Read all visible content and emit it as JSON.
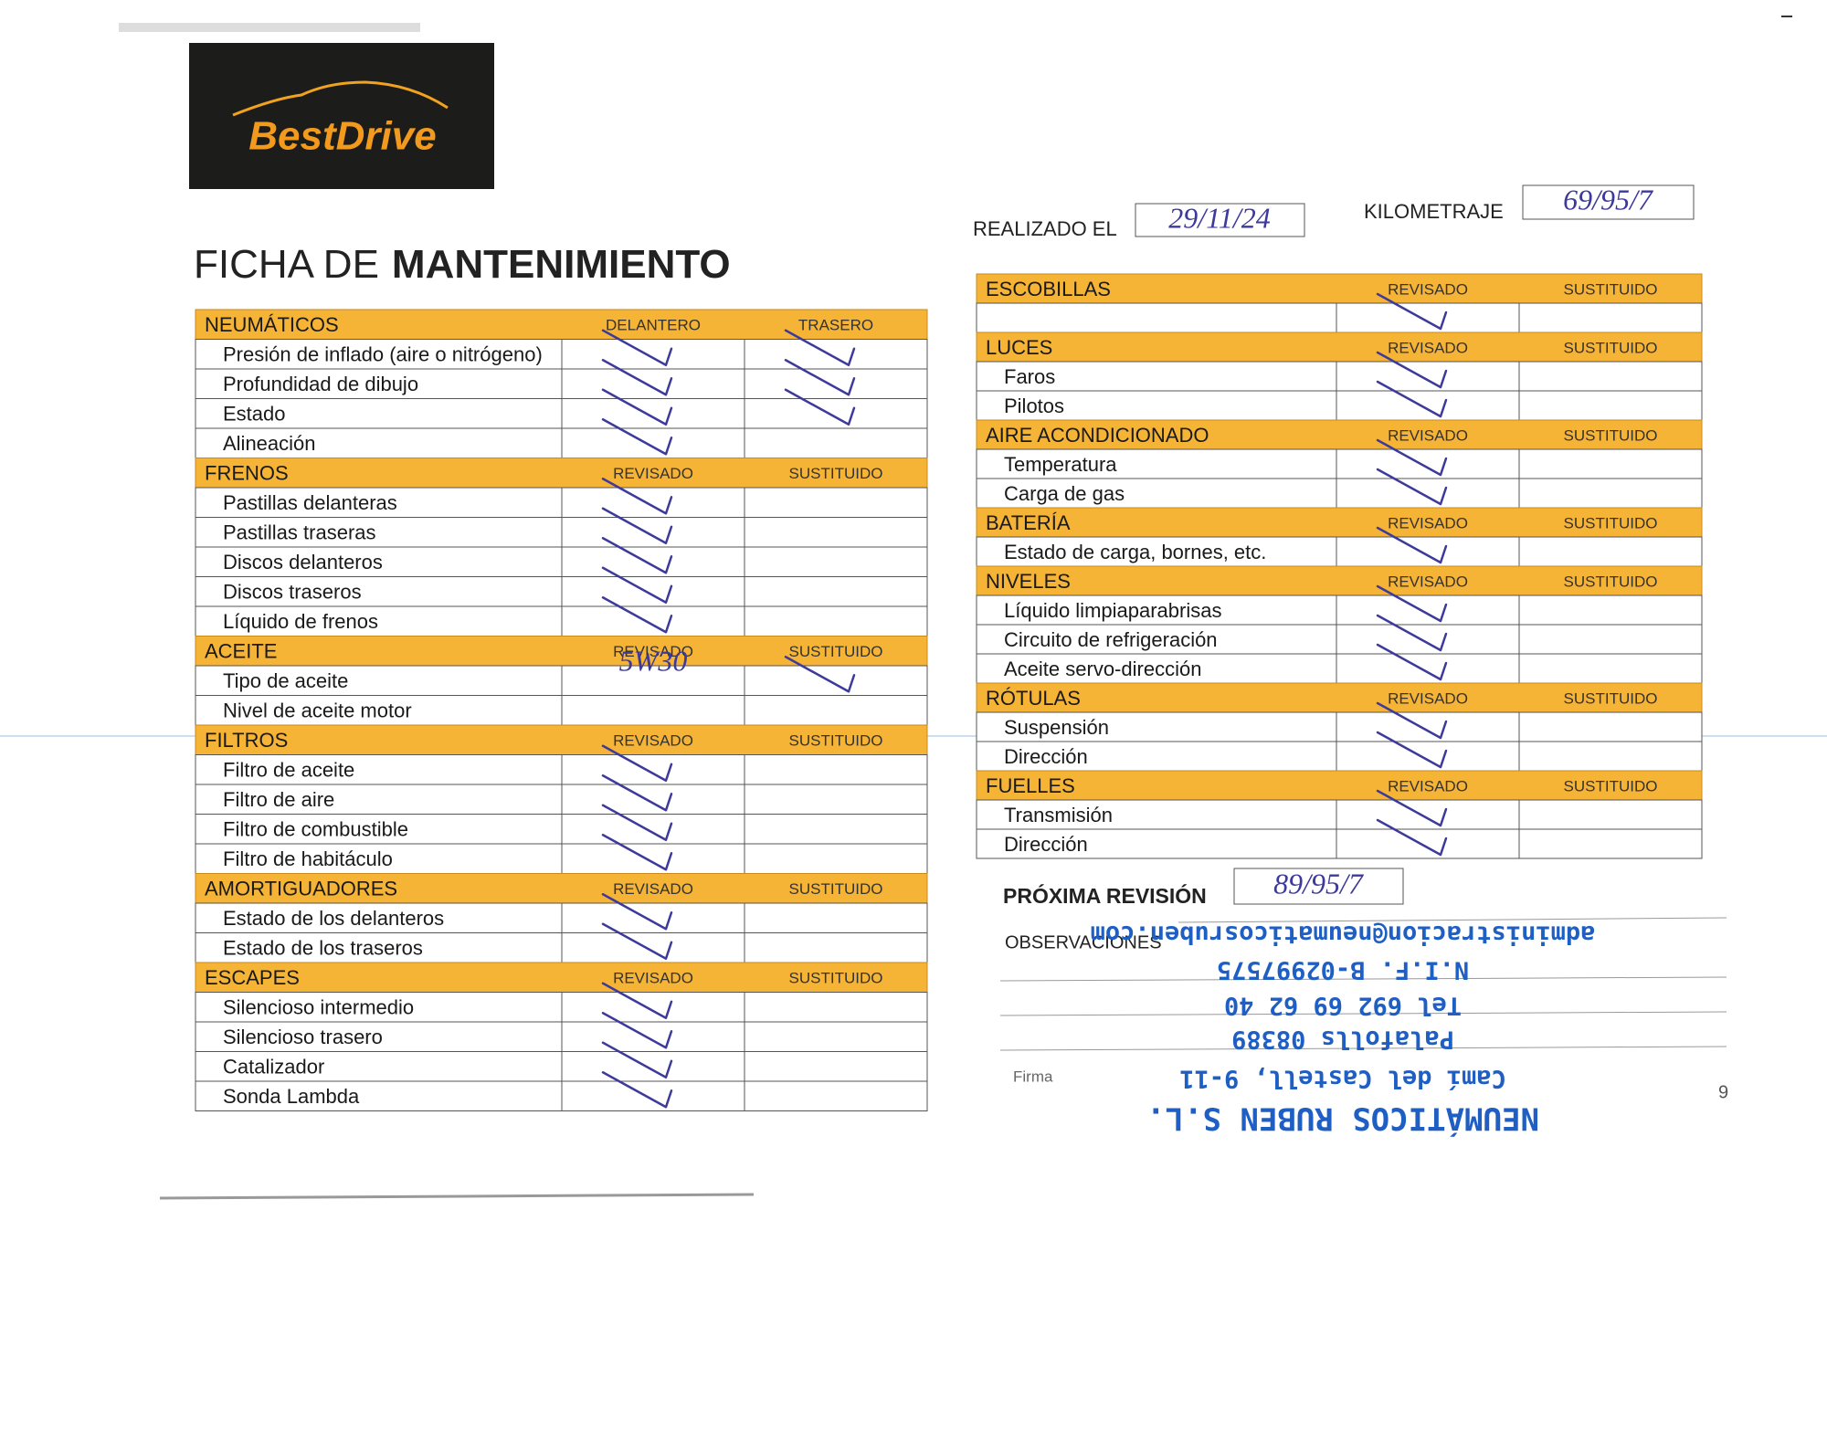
{
  "logo": "BestDrive",
  "title": {
    "light": "FICHA DE",
    "bold": "MANTENIMIENTO"
  },
  "realizado": {
    "label": "REALIZADO EL",
    "value": "29/11/24"
  },
  "kilometraje": {
    "label": "KILOMETRAJE",
    "value": "69/95/7"
  },
  "left_table": [
    {
      "name": "NEUMÁTICOS",
      "columns": [
        "DELANTERO",
        "TRASERO"
      ],
      "rows": [
        {
          "label": "Presión de inflado (aire o nitrógeno)",
          "checked": [
            0,
            1
          ]
        },
        {
          "label": "Profundidad de dibujo",
          "checked": [
            0,
            1
          ]
        },
        {
          "label": "Estado",
          "checked": [
            0,
            1
          ]
        },
        {
          "label": "Alineación",
          "checked": [
            0
          ]
        }
      ]
    },
    {
      "name": "FRENOS",
      "columns": [
        "REVISADO",
        "SUSTITUIDO"
      ],
      "rows": [
        {
          "label": "Pastillas delanteras",
          "checked": [
            0
          ]
        },
        {
          "label": "Pastillas traseras",
          "checked": [
            0
          ]
        },
        {
          "label": "Discos delanteros",
          "checked": [
            0
          ]
        },
        {
          "label": "Discos traseros",
          "checked": [
            0
          ]
        },
        {
          "label": "Líquido de frenos",
          "checked": [
            0
          ]
        }
      ]
    },
    {
      "name": "ACEITE",
      "columns": [
        "REVISADO",
        "SUSTITUIDO"
      ],
      "rows": [
        {
          "label": "Tipo de aceite",
          "handwritten": {
            "column": 0,
            "text": "5W30"
          },
          "checked": [
            1
          ]
        },
        {
          "label": "Nivel de aceite motor",
          "checked": []
        }
      ]
    },
    {
      "name": "FILTROS",
      "columns": [
        "REVISADO",
        "SUSTITUIDO"
      ],
      "rows": [
        {
          "label": "Filtro de aceite",
          "checked": [
            0
          ]
        },
        {
          "label": "Filtro de aire",
          "checked": [
            0
          ]
        },
        {
          "label": "Filtro de combustible",
          "checked": [
            0
          ]
        },
        {
          "label": "Filtro de habitáculo",
          "checked": [
            0
          ]
        }
      ]
    },
    {
      "name": "AMORTIGUADORES",
      "columns": [
        "REVISADO",
        "SUSTITUIDO"
      ],
      "rows": [
        {
          "label": "Estado de los delanteros",
          "checked": [
            0
          ]
        },
        {
          "label": "Estado de los traseros",
          "checked": [
            0
          ]
        }
      ]
    },
    {
      "name": "ESCAPES",
      "columns": [
        "REVISADO",
        "SUSTITUIDO"
      ],
      "rows": [
        {
          "label": "Silencioso intermedio",
          "checked": [
            0
          ]
        },
        {
          "label": "Silencioso trasero",
          "checked": [
            0
          ]
        },
        {
          "label": "Catalizador",
          "checked": [
            0
          ]
        },
        {
          "label": "Sonda Lambda",
          "checked": [
            0
          ]
        }
      ]
    }
  ],
  "right_table": [
    {
      "name": "ESCOBILLAS",
      "columns": [
        "REVISADO",
        "SUSTITUIDO"
      ],
      "rows": [
        {
          "checked": [
            0
          ]
        }
      ]
    },
    {
      "name": "LUCES",
      "columns": [
        "REVISADO",
        "SUSTITUIDO"
      ],
      "rows": [
        {
          "label": "Faros",
          "checked": [
            0
          ]
        },
        {
          "label": "Pilotos",
          "checked": [
            0
          ]
        }
      ]
    },
    {
      "name": "AIRE ACONDICIONADO",
      "columns": [
        "REVISADO",
        "SUSTITUIDO"
      ],
      "rows": [
        {
          "label": "Temperatura",
          "checked": [
            0
          ]
        },
        {
          "label": "Carga de gas",
          "checked": [
            0
          ]
        }
      ]
    },
    {
      "name": "BATERÍA",
      "columns": [
        "REVISADO",
        "SUSTITUIDO"
      ],
      "rows": [
        {
          "label": "Estado de carga, bornes, etc.",
          "checked": [
            0
          ]
        }
      ]
    },
    {
      "name": "NIVELES",
      "columns": [
        "REVISADO",
        "SUSTITUIDO"
      ],
      "rows": [
        {
          "label": "Líquido limpiaparabrisas",
          "checked": [
            0
          ]
        },
        {
          "label": "Circuito de refrigeración",
          "checked": [
            0
          ]
        },
        {
          "label": "Aceite servo-dirección",
          "checked": [
            0
          ]
        }
      ]
    },
    {
      "name": "RÓTULAS",
      "columns": [
        "REVISADO",
        "SUSTITUIDO"
      ],
      "rows": [
        {
          "label": "Suspensión",
          "checked": [
            0
          ]
        },
        {
          "label": "Dirección",
          "checked": [
            0
          ]
        }
      ]
    },
    {
      "name": "FUELLES",
      "columns": [
        "REVISADO",
        "SUSTITUIDO"
      ],
      "rows": [
        {
          "label": "Transmisión",
          "checked": [
            0
          ]
        },
        {
          "label": "Dirección",
          "checked": [
            0
          ]
        }
      ]
    }
  ],
  "proxima_revision": {
    "label": "PRÓXIMA REVISIÓN",
    "value": "89/95/7"
  },
  "observaciones": "OBSERVACIONES",
  "firma": "Firma",
  "stamp": [
    "NEUMÁTICOS RUBEN S.L.",
    "Camí del Castell, 9-11",
    "Palafolls 08389",
    "Tel 692 69 62 40",
    "N.I.F. B-02997575",
    "administracion@neumaticosruben.com"
  ],
  "page_number": "9"
}
